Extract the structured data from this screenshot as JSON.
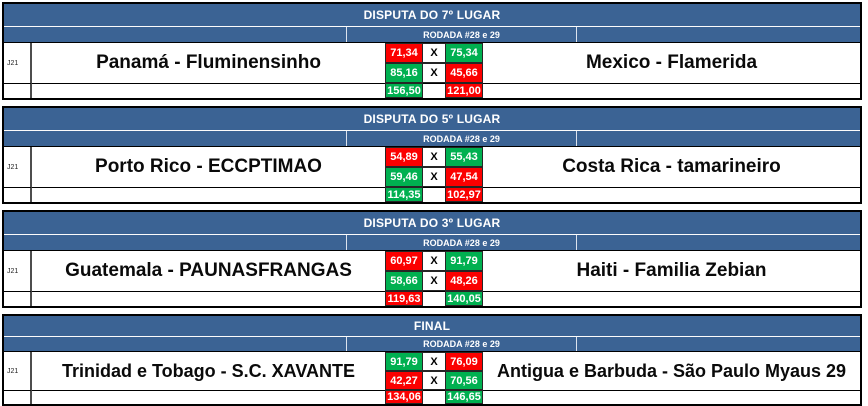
{
  "colors": {
    "header_blue": "#3b6394",
    "win_green": "#00b050",
    "loss_red": "#fb0000",
    "table_border": "#000000"
  },
  "round_label": "RODADA #28 e 29",
  "versus_label": "X",
  "matches": [
    {
      "title": "DISPUTA DO 7º LUGAR",
      "game_id": "J21",
      "home": {
        "name": "Panamá - Fluminensinho",
        "legs": [
          {
            "value": "71,34",
            "result": "loss"
          },
          {
            "value": "85,16",
            "result": "win"
          }
        ],
        "total": {
          "value": "156,50",
          "result": "win"
        }
      },
      "away": {
        "name": "Mexico - Flamerida",
        "legs": [
          {
            "value": "75,34",
            "result": "win"
          },
          {
            "value": "45,66",
            "result": "loss"
          }
        ],
        "total": {
          "value": "121,00",
          "result": "loss"
        }
      }
    },
    {
      "title": "DISPUTA DO 5º LUGAR",
      "game_id": "J21",
      "home": {
        "name": "Porto Rico - ECCPTIMAO",
        "legs": [
          {
            "value": "54,89",
            "result": "loss"
          },
          {
            "value": "59,46",
            "result": "win"
          }
        ],
        "total": {
          "value": "114,35",
          "result": "win"
        }
      },
      "away": {
        "name": "Costa Rica - tamarineiro",
        "legs": [
          {
            "value": "55,43",
            "result": "win"
          },
          {
            "value": "47,54",
            "result": "loss"
          }
        ],
        "total": {
          "value": "102,97",
          "result": "loss"
        }
      }
    },
    {
      "title": "DISPUTA DO 3º LUGAR",
      "game_id": "J21",
      "home": {
        "name": "Guatemala - PAUNASFRANGAS",
        "legs": [
          {
            "value": "60,97",
            "result": "loss"
          },
          {
            "value": "58,66",
            "result": "win"
          }
        ],
        "total": {
          "value": "119,63",
          "result": "loss"
        }
      },
      "away": {
        "name": "Haiti - Familia Zebian",
        "legs": [
          {
            "value": "91,79",
            "result": "win"
          },
          {
            "value": "48,26",
            "result": "loss"
          }
        ],
        "total": {
          "value": "140,05",
          "result": "win"
        }
      }
    },
    {
      "title": "FINAL",
      "game_id": "J21",
      "home": {
        "name": "Trinidad e Tobago - S.C. XAVANTE",
        "legs": [
          {
            "value": "91,79",
            "result": "win"
          },
          {
            "value": "42,27",
            "result": "loss"
          }
        ],
        "total": {
          "value": "134,06",
          "result": "loss"
        }
      },
      "away": {
        "name": "Antigua e Barbuda - São Paulo Myaus 29",
        "legs": [
          {
            "value": "76,09",
            "result": "loss"
          },
          {
            "value": "70,56",
            "result": "win"
          }
        ],
        "total": {
          "value": "146,65",
          "result": "win"
        }
      }
    }
  ]
}
